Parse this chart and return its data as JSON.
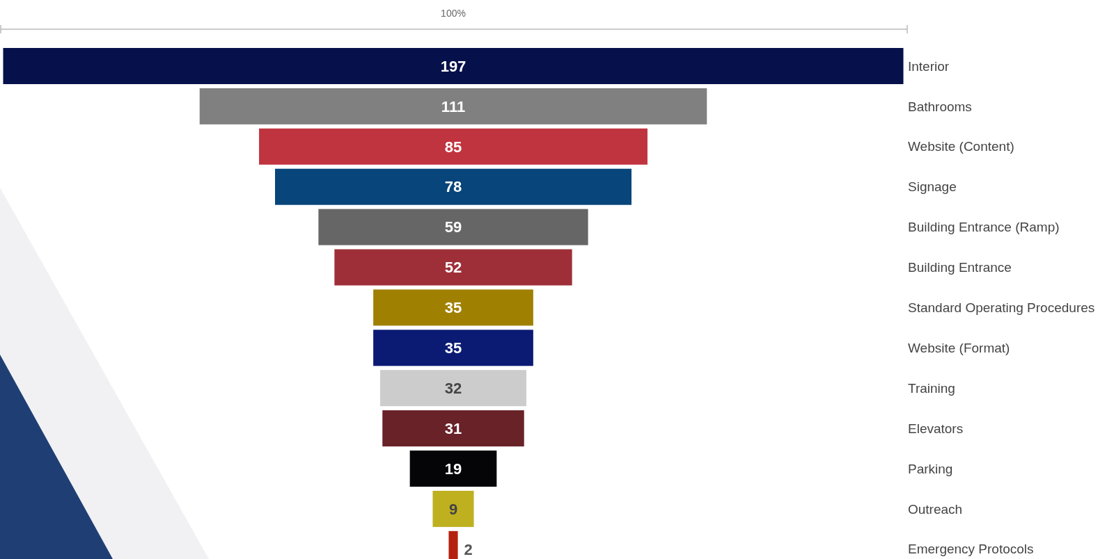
{
  "chart_data": {
    "type": "other",
    "categories": [
      "Interior",
      "Bathrooms",
      "Website (Content)",
      "Signage",
      "Building Entrance (Ramp)",
      "Building Entrance",
      "Standard Operating Procedures",
      "Website (Format)",
      "Training",
      "Elevators",
      "Parking",
      "Outreach",
      "Emergency Protocols"
    ],
    "values": [
      197,
      111,
      85,
      78,
      59,
      52,
      35,
      35,
      32,
      31,
      19,
      9,
      2
    ],
    "colors": [
      "#06104a",
      "#808080",
      "#c0343f",
      "#07457a",
      "#666666",
      "#9e2f38",
      "#a08000",
      "#0b1a73",
      "#cccccc",
      "#682228",
      "#050508",
      "#bfb020",
      "#b5210f"
    ],
    "data_labels": true,
    "annotations": [
      "100%"
    ]
  }
}
